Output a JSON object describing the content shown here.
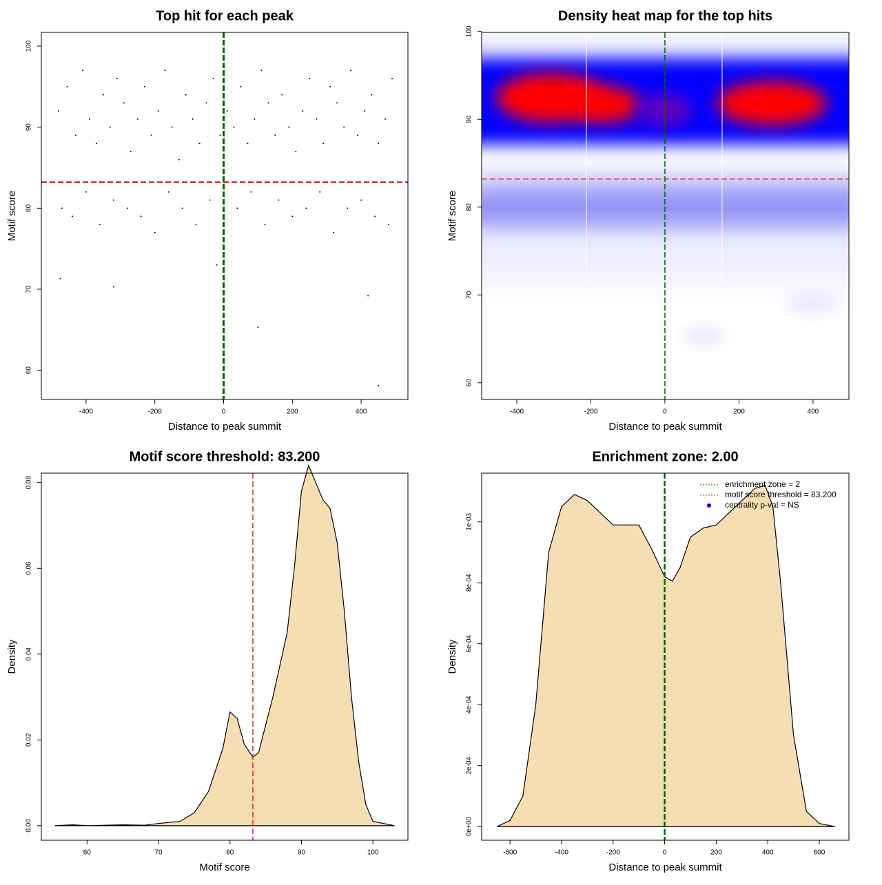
{
  "chart_data": [
    {
      "type": "scatter",
      "title": "Top hit for each peak",
      "xlabel": "Distance to peak summit",
      "ylabel": "Motif score",
      "x": [
        -480,
        -455,
        -430,
        -410,
        -390,
        -370,
        -350,
        -330,
        -310,
        -290,
        -270,
        -250,
        -230,
        -210,
        -190,
        -170,
        -150,
        -130,
        -110,
        -90,
        -70,
        -50,
        -30,
        -10,
        10,
        30,
        50,
        70,
        90,
        110,
        130,
        150,
        170,
        190,
        210,
        230,
        250,
        270,
        290,
        310,
        330,
        350,
        370,
        390,
        410,
        430,
        450,
        470,
        490,
        -470,
        -440,
        -400,
        -360,
        -320,
        -280,
        -240,
        -200,
        -160,
        -120,
        -80,
        -40,
        0,
        40,
        80,
        120,
        160,
        200,
        240,
        280,
        320,
        360,
        400,
        440,
        480,
        -475,
        -320,
        100,
        420,
        450,
        -20
      ],
      "y": [
        92,
        95,
        89,
        97,
        91,
        88,
        94,
        90,
        96,
        93,
        87,
        91,
        95,
        89,
        92,
        97,
        90,
        86,
        94,
        91,
        88,
        93,
        96,
        89,
        92,
        90,
        95,
        88,
        91,
        97,
        93,
        89,
        94,
        90,
        87,
        92,
        96,
        91,
        88,
        95,
        93,
        90,
        97,
        89,
        92,
        94,
        88,
        91,
        96,
        80,
        79,
        82,
        78,
        81,
        80,
        79,
        77,
        82,
        80,
        78,
        81,
        79,
        80,
        82,
        78,
        81,
        79,
        80,
        82,
        77,
        80,
        81,
        79,
        78,
        71.3,
        70.3,
        65.3,
        69.2,
        58.1,
        73
      ],
      "color": "#000000",
      "xlim": [
        -530,
        536
      ],
      "ylim": [
        56.4,
        101.7
      ],
      "xticks": [
        -400,
        -200,
        0,
        200,
        400
      ],
      "yticks": [
        60,
        70,
        80,
        90,
        100
      ],
      "hline": 83.2,
      "vline": 0
    },
    {
      "type": "heatmap",
      "title": "Density heat map for the top hits",
      "xlabel": "Distance to peak summit",
      "ylabel": "Motif score",
      "xlim": [
        -495,
        497
      ],
      "ylim": [
        58.1,
        99.9
      ],
      "xticks": [
        -400,
        -200,
        0,
        200,
        400
      ],
      "yticks": [
        60,
        70,
        80,
        90,
        100
      ],
      "hline": 83.2,
      "vline": 0
    },
    {
      "type": "area",
      "title": "Motif score threshold: 83.200",
      "xlabel": "Motif score",
      "ylabel": "Density",
      "x": [
        55.5,
        58,
        60,
        65,
        68,
        70,
        73,
        75,
        77,
        79,
        80,
        81,
        82,
        83.2,
        84,
        86,
        88,
        89,
        90,
        91,
        92,
        93,
        94,
        95,
        96,
        97,
        98,
        99,
        100,
        103
      ],
      "y": [
        0,
        0.0002,
        0,
        0.0002,
        0.0001,
        0.0005,
        0.001,
        0.003,
        0.008,
        0.018,
        0.0265,
        0.025,
        0.019,
        0.016,
        0.017,
        0.03,
        0.045,
        0.06,
        0.078,
        0.084,
        0.08,
        0.076,
        0.074,
        0.066,
        0.05,
        0.03,
        0.015,
        0.005,
        0.001,
        0
      ],
      "color": "#f5deb3",
      "xlim": [
        53.6,
        104.9
      ],
      "ylim": [
        -0.0034,
        0.0822
      ],
      "xticks": [
        60,
        70,
        80,
        90,
        100
      ],
      "yticks": [
        {
          "value": 0,
          "label": "0.00"
        },
        0.02,
        0.04,
        0.06,
        0.08
      ],
      "vline": 83.2
    },
    {
      "type": "area",
      "title": "Enrichment zone: 2.00",
      "xlabel": "Distance to peak summit",
      "ylabel": "Density",
      "x": [
        -650,
        -600,
        -550,
        -500,
        -450,
        -400,
        -350,
        -300,
        -250,
        -200,
        -150,
        -100,
        -50,
        0,
        30,
        60,
        100,
        150,
        200,
        250,
        300,
        350,
        390,
        420,
        450,
        500,
        550,
        600,
        660
      ],
      "y": [
        0,
        2e-05,
        0.0001,
        0.0004,
        0.0009,
        0.00105,
        0.00109,
        0.00107,
        0.00103,
        0.00099,
        0.00099,
        0.00099,
        0.00091,
        0.00082,
        0.000805,
        0.00085,
        0.00095,
        0.00098,
        0.00099,
        0.00103,
        0.00107,
        0.00111,
        0.00112,
        0.00105,
        0.0008,
        0.0003,
        5e-05,
        1e-05,
        0
      ],
      "color": "#f5deb3",
      "xlim": [
        -710,
        715
      ],
      "ylim": [
        -4.5e-05,
        0.00116
      ],
      "xticks": [
        -600,
        -400,
        -200,
        0,
        200,
        400,
        600
      ],
      "yticks": [
        {
          "value": 0,
          "label": "0e+00"
        },
        {
          "value": 0.0002,
          "label": "2e-04"
        },
        {
          "value": 0.0004,
          "label": "4e-04"
        },
        {
          "value": 0.0006,
          "label": "6e-04"
        },
        {
          "value": 0.0008,
          "label": "8e-04"
        },
        {
          "value": 0.001,
          "label": "1e-03"
        }
      ],
      "vline": 0,
      "legend": [
        {
          "label": "enrichment zone = 2",
          "color": "#006400",
          "symbol": "line"
        },
        {
          "label": "motif score threshold = 83.200",
          "color": "#e03030",
          "symbol": "line"
        },
        {
          "label": "centrality p-val = NS",
          "color": "#0000ff",
          "symbol": "dot"
        }
      ]
    }
  ]
}
